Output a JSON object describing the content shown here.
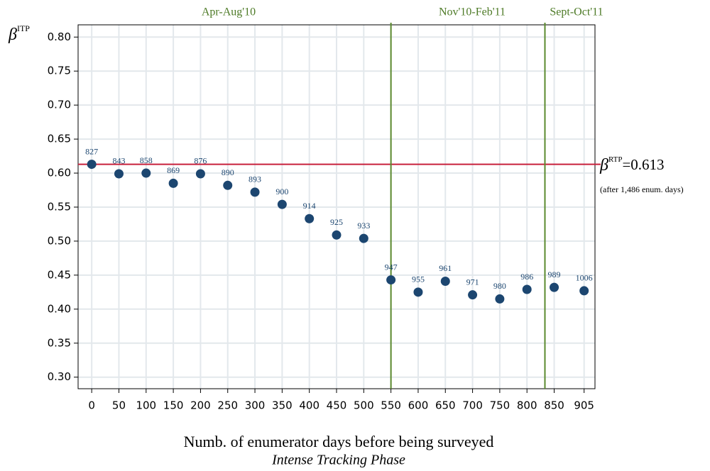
{
  "chart_data": {
    "type": "scatter",
    "periods": [
      "Apr-Aug'10",
      "Nov'10-Feb'11",
      "Sept-Oct'11"
    ],
    "y_label_symbol": "β",
    "y_label_sup": "ITP",
    "x_label": "Numb. of enumerator days before being surveyed",
    "subtitle": "Intense Tracking Phase",
    "x": [
      0,
      50,
      100,
      150,
      200,
      250,
      300,
      350,
      400,
      450,
      500,
      550,
      600,
      650,
      700,
      750,
      800,
      850,
      905
    ],
    "series": [
      {
        "color": "#1c4670",
        "values": [
          0.613,
          0.599,
          0.6,
          0.585,
          0.599,
          0.582,
          0.572,
          0.554,
          0.533,
          0.509,
          0.504,
          0.443,
          0.425,
          0.441,
          0.421,
          0.415,
          0.429,
          0.432,
          0.427
        ],
        "point_labels": [
          827,
          843,
          858,
          869,
          876,
          890,
          893,
          900,
          914,
          925,
          933,
          947,
          955,
          961,
          971,
          980,
          986,
          989,
          1006
        ]
      }
    ],
    "hline": {
      "value": 0.613,
      "color": "#c8203c",
      "symbol": "β",
      "sup": "RTP",
      "label": "=0.613",
      "note": "(after 1,486 enum. days)"
    },
    "vlines": [
      550,
      833
    ],
    "vline_color": "#5b8a2e",
    "xlim": [
      -25,
      925
    ],
    "ylim": [
      0.283,
      0.818
    ],
    "xticks": [
      0,
      50,
      100,
      150,
      200,
      250,
      300,
      350,
      400,
      450,
      500,
      550,
      600,
      650,
      700,
      750,
      800,
      850,
      905
    ],
    "yticks": [
      {
        "value": 0.3,
        "label": "0.30"
      },
      {
        "value": 0.35,
        "label": "0.35"
      },
      {
        "value": 0.4,
        "label": "0.40"
      },
      {
        "value": 0.45,
        "label": "0.45"
      },
      {
        "value": 0.5,
        "label": "0.50"
      },
      {
        "value": 0.55,
        "label": "0.55"
      },
      {
        "value": 0.6,
        "label": "0.60"
      },
      {
        "value": 0.65,
        "label": "0.65"
      },
      {
        "value": 0.7,
        "label": "0.70"
      },
      {
        "value": 0.75,
        "label": "0.75"
      },
      {
        "value": 0.8,
        "label": "0.80"
      }
    ],
    "grid": true
  }
}
